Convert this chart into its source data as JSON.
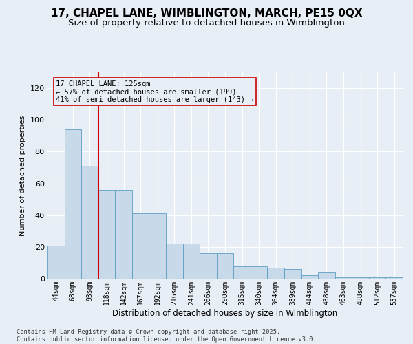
{
  "title_line1": "17, CHAPEL LANE, WIMBLINGTON, MARCH, PE15 0QX",
  "title_line2": "Size of property relative to detached houses in Wimblington",
  "xlabel": "Distribution of detached houses by size in Wimblington",
  "ylabel": "Number of detached properties",
  "categories": [
    "44sqm",
    "68sqm",
    "93sqm",
    "118sqm",
    "142sqm",
    "167sqm",
    "192sqm",
    "216sqm",
    "241sqm",
    "266sqm",
    "290sqm",
    "315sqm",
    "340sqm",
    "364sqm",
    "389sqm",
    "414sqm",
    "438sqm",
    "463sqm",
    "488sqm",
    "512sqm",
    "537sqm"
  ],
  "bar_heights": [
    21,
    94,
    71,
    56,
    56,
    41,
    41,
    22,
    22,
    16,
    16,
    8,
    8,
    7,
    6,
    2,
    4,
    1,
    1,
    1,
    1
  ],
  "bar_color": "#c8d9ea",
  "bar_edge_color": "#5b9fc4",
  "vline_x": 2.5,
  "vline_color": "#cc0000",
  "annotation_box_text": "17 CHAPEL LANE: 125sqm\n← 57% of detached houses are smaller (199)\n41% of semi-detached houses are larger (143) →",
  "background_color": "#e8eef5",
  "grid_color": "#d0d8e4",
  "ylim": [
    0,
    130
  ],
  "yticks": [
    0,
    20,
    40,
    60,
    80,
    100,
    120
  ],
  "footer": "Contains HM Land Registry data © Crown copyright and database right 2025.\nContains public sector information licensed under the Open Government Licence v3.0.",
  "title_fontsize": 11,
  "subtitle_fontsize": 9.5,
  "annotation_fontsize": 7.5,
  "ylabel_fontsize": 8,
  "xlabel_fontsize": 8.5
}
